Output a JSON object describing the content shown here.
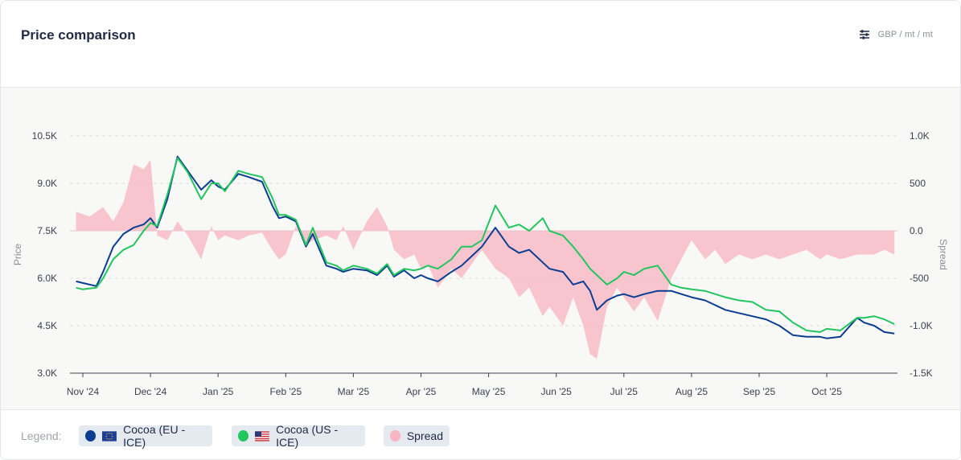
{
  "header": {
    "title": "Price comparison",
    "unit_label": "GBP / mt / mt",
    "settings_icon": "sliders-icon"
  },
  "legend": {
    "label": "Legend:",
    "items": [
      {
        "name": "Cocoa (EU - ICE)",
        "color": "#0b3d91",
        "flag": "eu-flag-icon"
      },
      {
        "name": "Cocoa (US - ICE)",
        "color": "#22c55e",
        "flag": "us-flag-icon"
      },
      {
        "name": "Spread",
        "color": "#f8b4c0"
      }
    ]
  },
  "chart_data": {
    "type": "line",
    "x_tick_labels": [
      "Nov '24",
      "Dec '24",
      "Jan '25",
      "Feb '25",
      "Mar '25",
      "Apr '25",
      "May '25",
      "Jun '25",
      "Jul '25",
      "Aug '25",
      "Sep '25",
      "Oct '25"
    ],
    "ylabel": "Price",
    "y2label": "Spread",
    "ylim": [
      3000,
      10500
    ],
    "y2lim": [
      -1500,
      1000
    ],
    "y_tick_labels": [
      "3.0K",
      "4.5K",
      "6.0K",
      "7.5K",
      "9.0K",
      "10.5K"
    ],
    "y2_tick_labels": [
      "-1.5K",
      "-1.0K",
      "-500",
      "0.0",
      "500",
      "1.0K"
    ],
    "grid": true,
    "x_domain": [
      -0.15,
      12.1
    ],
    "series": [
      {
        "name": "Cocoa (EU - ICE)",
        "axis": "left",
        "color": "#0b3d91",
        "x": [
          -0.1,
          0.0,
          0.2,
          0.3,
          0.45,
          0.6,
          0.75,
          0.9,
          1.0,
          1.1,
          1.25,
          1.4,
          1.55,
          1.75,
          1.9,
          2.0,
          2.1,
          2.3,
          2.45,
          2.65,
          2.8,
          2.9,
          3.0,
          3.15,
          3.3,
          3.4,
          3.6,
          3.75,
          3.85,
          4.0,
          4.2,
          4.35,
          4.5,
          4.6,
          4.75,
          4.9,
          5.0,
          5.1,
          5.25,
          5.45,
          5.6,
          5.75,
          5.9,
          6.1,
          6.3,
          6.45,
          6.6,
          6.8,
          6.9,
          7.1,
          7.25,
          7.4,
          7.5,
          7.6,
          7.75,
          7.9,
          8.0,
          8.15,
          8.3,
          8.5,
          8.7,
          8.85,
          9.0,
          9.2,
          9.35,
          9.5,
          9.7,
          9.9,
          10.1,
          10.3,
          10.5,
          10.7,
          10.9,
          11.0,
          11.2,
          11.45,
          11.55,
          11.7,
          11.85,
          12.0
        ],
        "y": [
          5900,
          5850,
          5750,
          6200,
          7000,
          7400,
          7600,
          7700,
          7900,
          7600,
          8500,
          9850,
          9400,
          8800,
          9100,
          8900,
          8800,
          9300,
          9200,
          9050,
          8300,
          7900,
          7950,
          7800,
          7000,
          7400,
          6400,
          6300,
          6200,
          6300,
          6250,
          6100,
          6400,
          6050,
          6250,
          6000,
          6100,
          6000,
          5900,
          6200,
          6400,
          6700,
          7000,
          7600,
          7000,
          6800,
          6900,
          6500,
          6300,
          6200,
          5800,
          5900,
          5600,
          5000,
          5300,
          5450,
          5500,
          5400,
          5500,
          5600,
          5600,
          5500,
          5400,
          5300,
          5150,
          5000,
          4900,
          4800,
          4700,
          4500,
          4200,
          4150,
          4150,
          4100,
          4150,
          4750,
          4600,
          4500,
          4300,
          4250
        ]
      },
      {
        "name": "Cocoa (US - ICE)",
        "axis": "left",
        "color": "#22c55e",
        "x": [
          -0.1,
          0.0,
          0.2,
          0.3,
          0.45,
          0.6,
          0.75,
          0.9,
          1.0,
          1.1,
          1.25,
          1.4,
          1.55,
          1.75,
          1.9,
          2.0,
          2.1,
          2.3,
          2.45,
          2.65,
          2.8,
          2.9,
          3.0,
          3.15,
          3.3,
          3.4,
          3.6,
          3.75,
          3.85,
          4.0,
          4.2,
          4.35,
          4.5,
          4.6,
          4.75,
          4.9,
          5.0,
          5.1,
          5.25,
          5.45,
          5.6,
          5.75,
          5.9,
          6.1,
          6.3,
          6.45,
          6.6,
          6.8,
          6.9,
          7.1,
          7.25,
          7.4,
          7.5,
          7.6,
          7.75,
          7.9,
          8.0,
          8.15,
          8.3,
          8.5,
          8.7,
          8.85,
          9.0,
          9.2,
          9.35,
          9.5,
          9.7,
          9.9,
          10.1,
          10.3,
          10.5,
          10.7,
          10.9,
          11.0,
          11.2,
          11.45,
          11.55,
          11.7,
          11.85,
          12.0
        ],
        "y": [
          5700,
          5650,
          5700,
          6000,
          6600,
          6900,
          7050,
          7500,
          7750,
          7650,
          8650,
          9800,
          9350,
          8500,
          9000,
          9000,
          8750,
          9400,
          9300,
          9200,
          8550,
          8000,
          8000,
          7850,
          7050,
          7600,
          6500,
          6400,
          6250,
          6400,
          6300,
          6150,
          6450,
          6100,
          6300,
          6250,
          6300,
          6400,
          6300,
          6600,
          7000,
          7000,
          7200,
          8300,
          7600,
          7700,
          7500,
          7900,
          7500,
          7350,
          7000,
          6600,
          6300,
          6100,
          5800,
          6000,
          6200,
          6100,
          6300,
          6400,
          5800,
          5700,
          5650,
          5600,
          5500,
          5400,
          5300,
          5250,
          5000,
          4950,
          4600,
          4350,
          4300,
          4400,
          4350,
          4750,
          4750,
          4800,
          4700,
          4550
        ]
      },
      {
        "name": "Spread",
        "axis": "right",
        "color": "#f8b4c0",
        "x": [
          -0.1,
          0.1,
          0.3,
          0.45,
          0.6,
          0.75,
          0.9,
          1.0,
          1.1,
          1.25,
          1.4,
          1.55,
          1.75,
          1.9,
          2.0,
          2.1,
          2.3,
          2.45,
          2.65,
          2.8,
          2.9,
          3.0,
          3.15,
          3.3,
          3.4,
          3.6,
          3.75,
          3.85,
          4.0,
          4.2,
          4.35,
          4.5,
          4.6,
          4.75,
          4.9,
          5.0,
          5.1,
          5.25,
          5.45,
          5.6,
          5.75,
          5.9,
          6.1,
          6.3,
          6.45,
          6.6,
          6.8,
          6.9,
          7.1,
          7.25,
          7.4,
          7.5,
          7.6,
          7.75,
          7.9,
          8.0,
          8.15,
          8.3,
          8.5,
          8.7,
          8.85,
          9.0,
          9.2,
          9.35,
          9.5,
          9.7,
          9.9,
          10.1,
          10.3,
          10.5,
          10.7,
          10.9,
          11.0,
          11.2,
          11.45,
          11.55,
          11.7,
          11.85,
          12.0
        ],
        "y": [
          200,
          150,
          250,
          100,
          300,
          700,
          650,
          750,
          -50,
          -100,
          100,
          -50,
          -300,
          50,
          -100,
          -50,
          -100,
          -50,
          -20,
          -200,
          -300,
          -250,
          50,
          -150,
          -100,
          -50,
          -100,
          50,
          -200,
          100,
          250,
          50,
          -200,
          -300,
          -250,
          -400,
          -350,
          -600,
          -400,
          -500,
          -350,
          -200,
          -400,
          -500,
          -700,
          -600,
          -900,
          -800,
          -1000,
          -700,
          -1000,
          -1300,
          -1350,
          -800,
          -600,
          -700,
          -850,
          -700,
          -950,
          -500,
          -300,
          -100,
          -300,
          -200,
          -350,
          -250,
          -300,
          -250,
          -300,
          -250,
          -200,
          -300,
          -250,
          -300,
          -250,
          -250,
          -250,
          -200,
          -250
        ]
      }
    ]
  }
}
